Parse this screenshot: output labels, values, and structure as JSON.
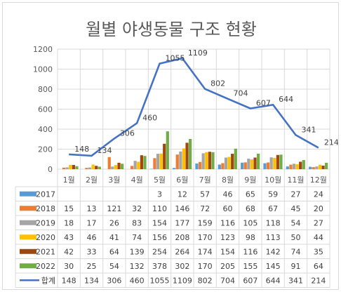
{
  "chart_data": {
    "type": "bar",
    "title": "월별 야생동물 구조 현황",
    "categories": [
      "1월",
      "2월",
      "3월",
      "4월",
      "5월",
      "6월",
      "7월",
      "8월",
      "9월",
      "10월",
      "11월",
      "12월"
    ],
    "ylim": [
      0,
      1200
    ],
    "yticks": [
      "0",
      "200",
      "400",
      "600",
      "800",
      "1000",
      "1200"
    ],
    "grid": true,
    "data_table": true,
    "series": [
      {
        "name": "2017",
        "color": "#5B9BD5",
        "values": [
          null,
          null,
          null,
          null,
          3,
          12,
          57,
          46,
          65,
          59,
          27,
          24
        ],
        "labels": [
          "",
          "",
          "",
          "",
          "3",
          "12",
          "57",
          "46",
          "65",
          "59",
          "27",
          "24"
        ]
      },
      {
        "name": "2018",
        "color": "#ED7D31",
        "values": [
          15,
          13,
          121,
          32,
          110,
          146,
          72,
          60,
          68,
          67,
          45,
          20
        ],
        "labels": [
          "15",
          "13",
          "121",
          "32",
          "110",
          "146",
          "72",
          "60",
          "68",
          "67",
          "45",
          "20"
        ]
      },
      {
        "name": "2019",
        "color": "#A5A5A5",
        "values": [
          18,
          17,
          26,
          83,
          154,
          177,
          159,
          116,
          105,
          118,
          54,
          27
        ],
        "labels": [
          "18",
          "17",
          "26",
          "83",
          "154",
          "177",
          "159",
          "116",
          "105",
          "118",
          "54",
          "27"
        ]
      },
      {
        "name": "2020",
        "color": "#FFC000",
        "values": [
          43,
          46,
          41,
          74,
          156,
          208,
          170,
          123,
          98,
          113,
          50,
          44
        ],
        "labels": [
          "43",
          "46",
          "41",
          "74",
          "156",
          "208",
          "170",
          "123",
          "98",
          "113",
          "50",
          "44"
        ]
      },
      {
        "name": "2021",
        "color": "#9E480E",
        "values": [
          42,
          33,
          64,
          139,
          254,
          264,
          174,
          154,
          116,
          142,
          74,
          35
        ],
        "labels": [
          "42",
          "33",
          "64",
          "139",
          "254",
          "264",
          "174",
          "154",
          "116",
          "142",
          "74",
          "35"
        ]
      },
      {
        "name": "2022",
        "color": "#70AD47",
        "values": [
          30,
          25,
          54,
          132,
          378,
          302,
          170,
          205,
          155,
          145,
          91,
          64
        ],
        "labels": [
          "30",
          "25",
          "54",
          "132",
          "378",
          "302",
          "170",
          "205",
          "155",
          "145",
          "91",
          "64"
        ]
      }
    ],
    "total": {
      "name": "합계",
      "type": "line",
      "color": "#4472C4",
      "values": [
        148,
        134,
        306,
        460,
        1055,
        1109,
        802,
        704,
        607,
        644,
        341,
        214
      ],
      "labels": [
        "148",
        "134",
        "306",
        "460",
        "1055",
        "1109",
        "802",
        "704",
        "607",
        "644",
        "341",
        "214"
      ]
    }
  }
}
